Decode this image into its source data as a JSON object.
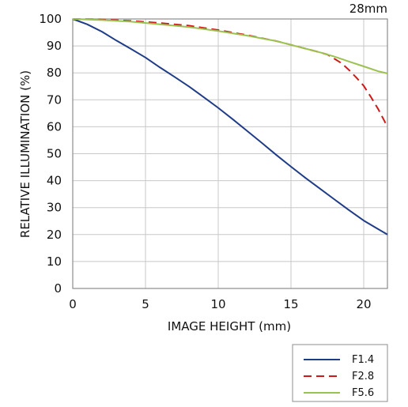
{
  "chart_data": {
    "type": "line",
    "title": "28mm",
    "xlabel": "IMAGE HEIGHT (mm)",
    "ylabel": "RELATIVE ILLUMINATION (%)",
    "xlim": [
      0,
      21.63
    ],
    "ylim": [
      0,
      100
    ],
    "x_ticks": [
      0,
      5,
      10,
      15,
      20
    ],
    "y_ticks": [
      0,
      10,
      20,
      30,
      40,
      50,
      60,
      70,
      80,
      90,
      100
    ],
    "grid": true,
    "legend_position": "bottom-right",
    "series": [
      {
        "name": "F1.4",
        "color": "#1f3c88",
        "dash": "solid",
        "points": [
          [
            0,
            100
          ],
          [
            1,
            98
          ],
          [
            2,
            95.3
          ],
          [
            3,
            92
          ],
          [
            4,
            88.9
          ],
          [
            5,
            85.7
          ],
          [
            6,
            82
          ],
          [
            7,
            78.5
          ],
          [
            8,
            74.9
          ],
          [
            9,
            71
          ],
          [
            10,
            67
          ],
          [
            11,
            62.8
          ],
          [
            12,
            58.4
          ],
          [
            13,
            54
          ],
          [
            14,
            49.5
          ],
          [
            15,
            45.2
          ],
          [
            16,
            41
          ],
          [
            17,
            37
          ],
          [
            18,
            33
          ],
          [
            19,
            29
          ],
          [
            20,
            25.2
          ],
          [
            21,
            22
          ],
          [
            21.63,
            20
          ]
        ]
      },
      {
        "name": "F2.8",
        "color": "#cc1a1a",
        "dash": "dashed",
        "points": [
          [
            0,
            100
          ],
          [
            2,
            99.8
          ],
          [
            4,
            99.3
          ],
          [
            6,
            98.5
          ],
          [
            8,
            97.5
          ],
          [
            10,
            95.9
          ],
          [
            12,
            94
          ],
          [
            14,
            91.8
          ],
          [
            16,
            89
          ],
          [
            17,
            87.6
          ],
          [
            17.5,
            86.8
          ],
          [
            18,
            85.2
          ],
          [
            18.5,
            83.5
          ],
          [
            19,
            81
          ],
          [
            19.5,
            78.2
          ],
          [
            20,
            75.2
          ],
          [
            20.5,
            71
          ],
          [
            21,
            66.5
          ],
          [
            21.63,
            60
          ]
        ]
      },
      {
        "name": "F5.6",
        "color": "#9bc250",
        "dash": "solid",
        "points": [
          [
            0,
            100
          ],
          [
            2,
            99.6
          ],
          [
            4,
            99
          ],
          [
            6,
            98
          ],
          [
            8,
            97
          ],
          [
            10,
            95.5
          ],
          [
            12,
            93.8
          ],
          [
            14,
            91.8
          ],
          [
            16,
            89
          ],
          [
            17,
            87.6
          ],
          [
            18,
            86
          ],
          [
            19,
            84.2
          ],
          [
            20,
            82.4
          ],
          [
            21,
            80.6
          ],
          [
            21.63,
            79.8
          ]
        ]
      }
    ]
  }
}
